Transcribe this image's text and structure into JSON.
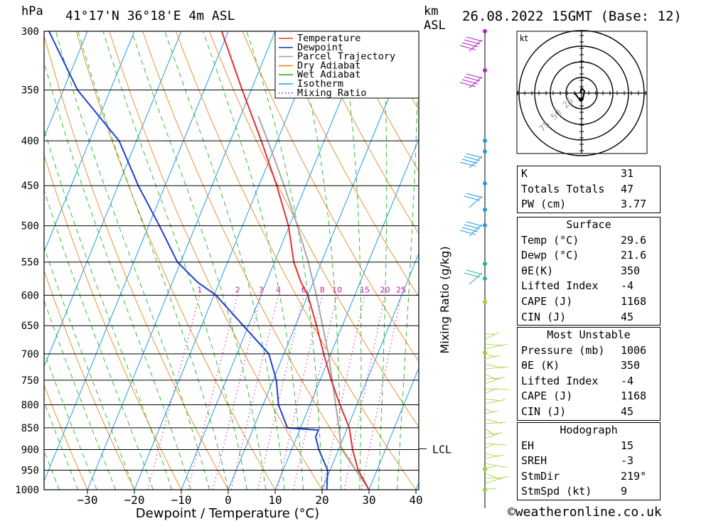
{
  "header": {
    "pressure_unit": "hPa",
    "location": "41°17'N  36°18'E  4m  ASL",
    "height_unit": "km",
    "height_ref": "ASL",
    "datetime": "26.08.2022  15GMT  (Base: 12)"
  },
  "legend": [
    {
      "label": "Temperature",
      "color": "#e83030",
      "style": "solid"
    },
    {
      "label": "Dewpoint",
      "color": "#1f3fd8",
      "style": "solid"
    },
    {
      "label": "Parcel Trajectory",
      "color": "#a8a8a8",
      "style": "solid"
    },
    {
      "label": "Dry Adiabat",
      "color": "#e8871f",
      "style": "solid"
    },
    {
      "label": "Wet Adiabat",
      "color": "#22b422",
      "style": "solid"
    },
    {
      "label": "Isotherm",
      "color": "#1e9be6",
      "style": "solid"
    },
    {
      "label": "Mixing Ratio",
      "color": "#c8189c",
      "style": "dotted"
    }
  ],
  "chart_data": {
    "type": "skew-t",
    "xlabel": "Dewpoint / Temperature (°C)",
    "ylabel": "hPa",
    "x_ticks": [
      -30,
      -20,
      -10,
      0,
      10,
      20,
      30,
      40
    ],
    "pressure_levels": [
      300,
      350,
      400,
      450,
      500,
      550,
      600,
      650,
      700,
      750,
      800,
      850,
      900,
      950,
      1000
    ],
    "mixing_ratio_axis_label": "Mixing Ratio (g/kg)",
    "mixing_ratio_values": [
      1,
      2,
      3,
      4,
      6,
      8,
      10,
      15,
      20,
      25
    ],
    "lcl_label": "LCL",
    "lcl_pressure": 898,
    "temperature": [
      {
        "p": 1000,
        "t": 30.0
      },
      {
        "p": 950,
        "t": 26.0
      },
      {
        "p": 900,
        "t": 23.0
      },
      {
        "p": 850,
        "t": 20.4
      },
      {
        "p": 800,
        "t": 16.4
      },
      {
        "p": 750,
        "t": 12.4
      },
      {
        "p": 700,
        "t": 8.5
      },
      {
        "p": 650,
        "t": 4.5
      },
      {
        "p": 600,
        "t": 0.0
      },
      {
        "p": 580,
        "t": -2.6
      },
      {
        "p": 550,
        "t": -5.9
      },
      {
        "p": 500,
        "t": -10.2
      },
      {
        "p": 450,
        "t": -16.2
      },
      {
        "p": 400,
        "t": -23.4
      },
      {
        "p": 350,
        "t": -31.9
      },
      {
        "p": 300,
        "t": -41.4
      }
    ],
    "dewpoint": [
      {
        "p": 1000,
        "t": 21.0
      },
      {
        "p": 950,
        "t": 19.5
      },
      {
        "p": 900,
        "t": 15.8
      },
      {
        "p": 870,
        "t": 14.0
      },
      {
        "p": 855,
        "t": 14.0
      },
      {
        "p": 850,
        "t": 7.2
      },
      {
        "p": 800,
        "t": 3.3
      },
      {
        "p": 750,
        "t": 0.7
      },
      {
        "p": 700,
        "t": -3.2
      },
      {
        "p": 650,
        "t": -11.1
      },
      {
        "p": 600,
        "t": -19.6
      },
      {
        "p": 580,
        "t": -24.6
      },
      {
        "p": 550,
        "t": -30.7
      },
      {
        "p": 500,
        "t": -37.7
      },
      {
        "p": 450,
        "t": -45.7
      },
      {
        "p": 400,
        "t": -53.7
      },
      {
        "p": 350,
        "t": -67.0
      },
      {
        "p": 300,
        "t": -78.2
      }
    ],
    "parcel": [
      {
        "p": 1000,
        "t": 30.0
      },
      {
        "p": 898,
        "t": 20.5
      },
      {
        "p": 850,
        "t": 18.2
      },
      {
        "p": 800,
        "t": 15.5
      },
      {
        "p": 750,
        "t": 12.6
      },
      {
        "p": 700,
        "t": 9.5
      },
      {
        "p": 650,
        "t": 5.8
      },
      {
        "p": 600,
        "t": 1.8
      },
      {
        "p": 550,
        "t": -2.8
      },
      {
        "p": 500,
        "t": -8.3
      },
      {
        "p": 450,
        "t": -14.6
      },
      {
        "p": 400,
        "t": -22.0
      },
      {
        "p": 375,
        "t": -26.2
      }
    ]
  },
  "hodograph": {
    "unit": "kt",
    "rings": [
      "25",
      "50",
      "75"
    ]
  },
  "indices": {
    "general": [
      {
        "label": "K",
        "value": "31"
      },
      {
        "label": "Totals Totals",
        "value": "47"
      },
      {
        "label": "PW (cm)",
        "value": "3.77"
      }
    ],
    "surface": {
      "title": "Surface",
      "rows": [
        {
          "label": "Temp (°C)",
          "value": "29.6"
        },
        {
          "label": "Dewp (°C)",
          "value": "21.6"
        },
        {
          "label": "θE(K)",
          "value": "350"
        },
        {
          "label": "Lifted Index",
          "value": "-4"
        },
        {
          "label": "CAPE (J)",
          "value": "1168"
        },
        {
          "label": "CIN (J)",
          "value": "45"
        }
      ]
    },
    "most_unstable": {
      "title": "Most Unstable",
      "rows": [
        {
          "label": "Pressure (mb)",
          "value": "1006"
        },
        {
          "label": "θE (K)",
          "value": "350"
        },
        {
          "label": "Lifted Index",
          "value": "-4"
        },
        {
          "label": "CAPE (J)",
          "value": "1168"
        },
        {
          "label": "CIN (J)",
          "value": "45"
        }
      ]
    },
    "hodograph_params": {
      "title": "Hodograph",
      "rows": [
        {
          "label": "EH",
          "value": "15"
        },
        {
          "label": "SREH",
          "value": "-3"
        },
        {
          "label": "StmDir",
          "value": "219°"
        },
        {
          "label": "StmSpd (kt)",
          "value": "9"
        }
      ]
    }
  },
  "footer": {
    "credit": "©weatheronline.co.uk"
  }
}
